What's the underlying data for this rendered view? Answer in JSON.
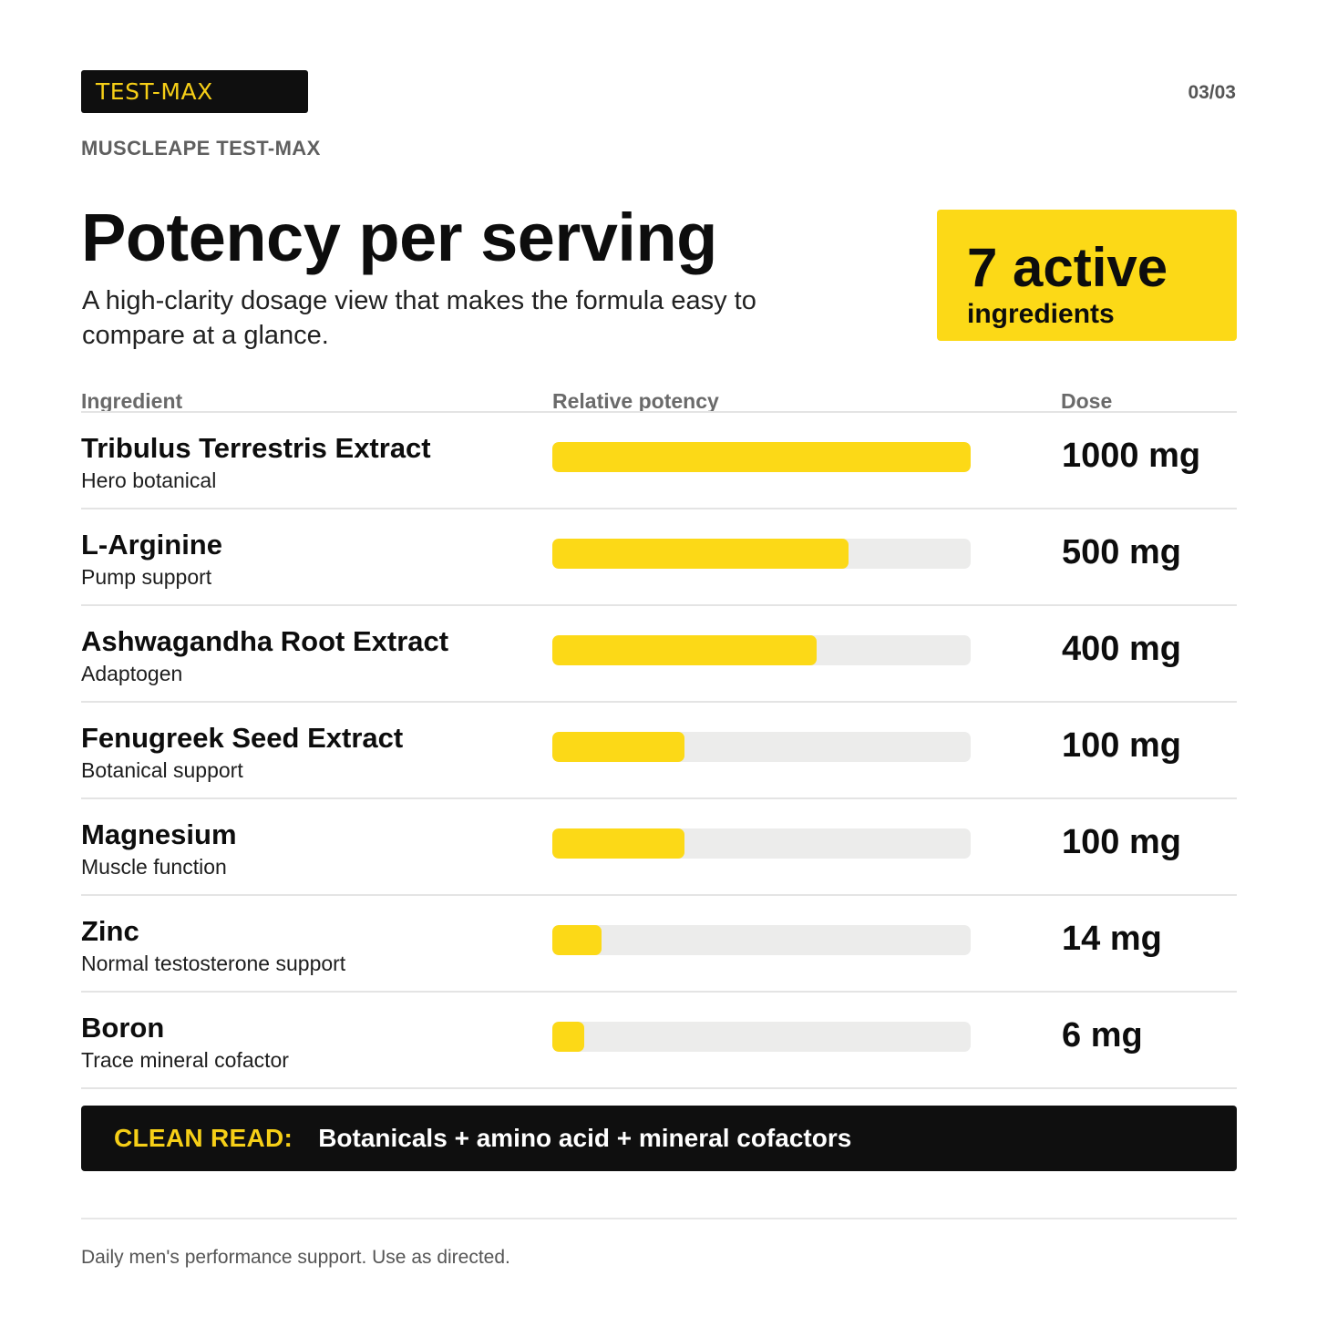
{
  "brand_tag": "TEST-MAX",
  "page_indicator": "03/03",
  "product_name": "MUSCLEAPE TEST-MAX",
  "title": "Potency per serving",
  "subtitle": "A high-clarity dosage view that makes the formula easy to compare at a glance.",
  "count_card": {
    "number_line": "7 active",
    "label": "ingredients"
  },
  "colors": {
    "accent": "#fcd917",
    "dark": "#0f0f0f",
    "track": "#ececeb"
  },
  "chart_data": {
    "type": "bar",
    "orientation": "horizontal",
    "columns": [
      "Ingredient",
      "Relative potency",
      "Dose"
    ],
    "unit": "mg",
    "xlim": [
      0,
      1000
    ],
    "rows": [
      {
        "name": "Tribulus Terrestris Extract",
        "role": "Hero botanical",
        "value": 1000,
        "potency_fraction": 1.0,
        "dose": "1000 mg"
      },
      {
        "name": "L-Arginine",
        "role": "Pump support",
        "value": 500,
        "potency_fraction": 0.707,
        "dose": "500 mg"
      },
      {
        "name": "Ashwagandha Root Extract",
        "role": "Adaptogen",
        "value": 400,
        "potency_fraction": 0.632,
        "dose": "400 mg"
      },
      {
        "name": "Fenugreek Seed Extract",
        "role": "Botanical support",
        "value": 100,
        "potency_fraction": 0.316,
        "dose": "100 mg"
      },
      {
        "name": "Magnesium",
        "role": "Muscle function",
        "value": 100,
        "potency_fraction": 0.316,
        "dose": "100 mg"
      },
      {
        "name": "Zinc",
        "role": "Normal testosterone support",
        "value": 14,
        "potency_fraction": 0.118,
        "dose": "14 mg"
      },
      {
        "name": "Boron",
        "role": "Trace mineral cofactor",
        "value": 6,
        "potency_fraction": 0.077,
        "dose": "6 mg"
      }
    ]
  },
  "callout": {
    "label": "CLEAN READ:",
    "text": "Botanicals + amino acid + mineral cofactors"
  },
  "footer_note": "Daily men's performance support. Use as directed."
}
